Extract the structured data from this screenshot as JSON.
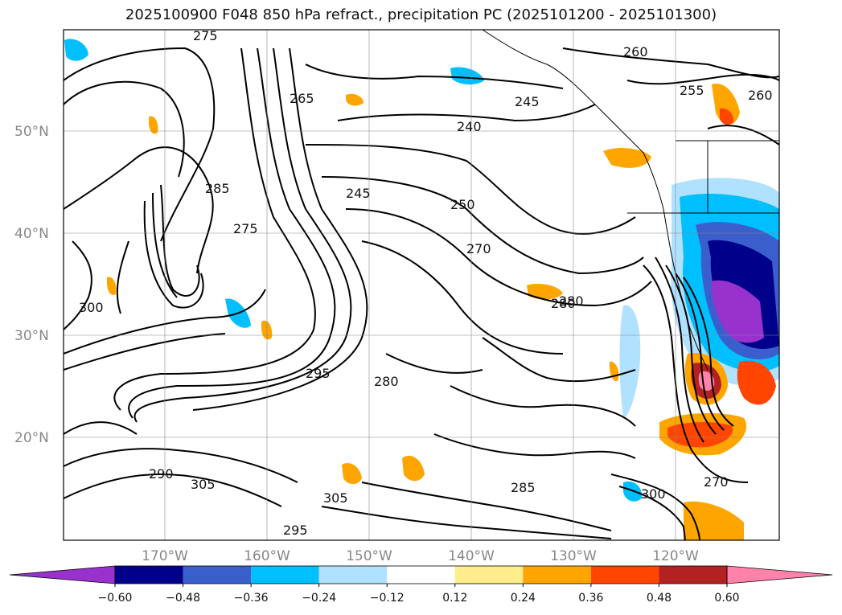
{
  "title": "2025100900 F048 850 hPa refract., precipitation PC (2025101200 - 2025101300)",
  "lat_labels": [
    "50°N",
    "40°N",
    "30°N",
    "20°N"
  ],
  "lon_labels": [
    "170°W",
    "160°W",
    "150°W",
    "140°W",
    "130°W",
    "120°W"
  ],
  "colorbar": {
    "ticks": [
      "−0.60",
      "−0.48",
      "−0.36",
      "−0.24",
      "−0.12",
      "0.12",
      "0.24",
      "0.36",
      "0.48",
      "0.60"
    ],
    "colors": [
      "#9932cc",
      "#00008b",
      "#3a5fcd",
      "#00bfff",
      "#b0e2ff",
      "#ffffff",
      "#ffec8b",
      "#ffa500",
      "#ff4500",
      "#b22222",
      "#ff82ab"
    ]
  },
  "contour_labels": [
    "275",
    "265",
    "260",
    "255",
    "250",
    "245",
    "240",
    "285",
    "280",
    "270",
    "300",
    "295",
    "290",
    "305"
  ]
}
